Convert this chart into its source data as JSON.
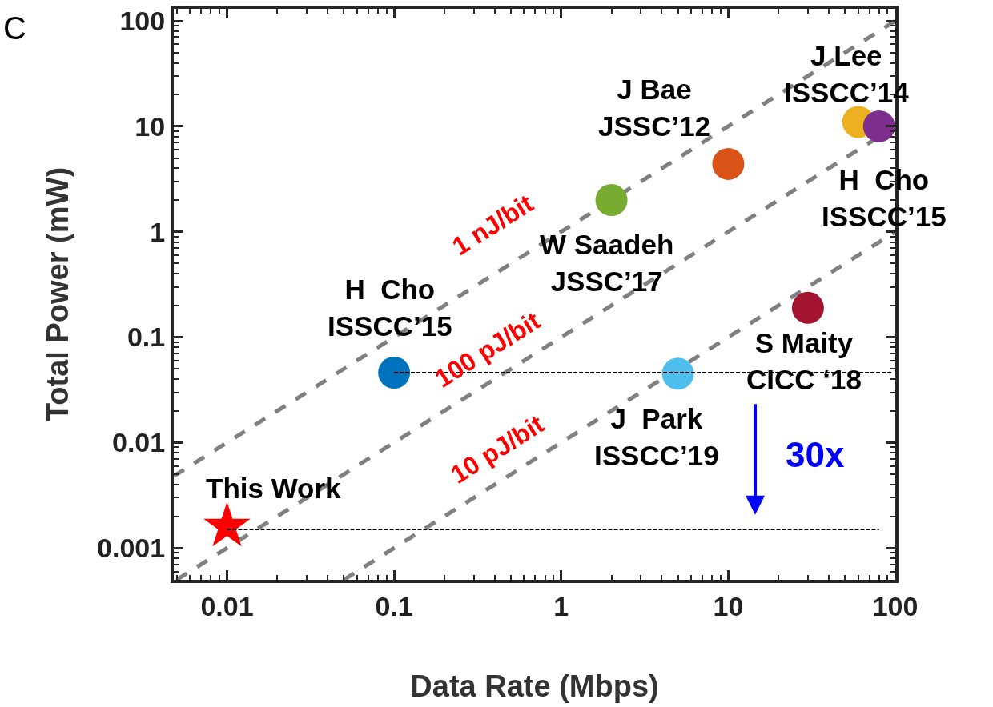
{
  "chart_data": {
    "type": "scatter",
    "xlabel": "Data Rate (Mbps)",
    "ylabel": "Total Power (mW)",
    "log": "xy",
    "marker": "circle",
    "xlim": [
      0.0048,
      100
    ],
    "ylim": [
      0.0005,
      130
    ],
    "xticks": [
      {
        "value": 0.005,
        "label": null
      },
      {
        "value": 0.006,
        "label": null
      },
      {
        "value": 0.007,
        "label": null
      },
      {
        "value": 0.008,
        "label": null
      },
      {
        "value": 0.009,
        "label": null
      },
      0.01,
      {
        "value": 0.02,
        "label": null
      },
      {
        "value": 0.03,
        "label": null
      },
      {
        "value": 0.04,
        "label": null
      },
      {
        "value": 0.05,
        "label": null
      },
      {
        "value": 0.06,
        "label": null
      },
      {
        "value": 0.07,
        "label": null
      },
      {
        "value": 0.08,
        "label": null
      },
      {
        "value": 0.09,
        "label": null
      },
      0.1,
      {
        "value": 0.2,
        "label": null
      },
      {
        "value": 0.3,
        "label": null
      },
      {
        "value": 0.4,
        "label": null
      },
      {
        "value": 0.5,
        "label": null
      },
      {
        "value": 0.6,
        "label": null
      },
      {
        "value": 0.7,
        "label": null
      },
      {
        "value": 0.8,
        "label": null
      },
      {
        "value": 0.9,
        "label": null
      },
      1,
      {
        "value": 2,
        "label": null
      },
      {
        "value": 3,
        "label": null
      },
      {
        "value": 4,
        "label": null
      },
      {
        "value": 5,
        "label": null
      },
      {
        "value": 6,
        "label": null
      },
      {
        "value": 7,
        "label": null
      },
      {
        "value": 8,
        "label": null
      },
      {
        "value": 9,
        "label": null
      },
      10,
      {
        "value": 20,
        "label": null
      },
      {
        "value": 30,
        "label": null
      },
      {
        "value": 40,
        "label": null
      },
      {
        "value": 50,
        "label": null
      },
      {
        "value": 60,
        "label": null
      },
      {
        "value": 70,
        "label": null
      },
      {
        "value": 80,
        "label": null
      },
      {
        "value": 90,
        "label": null
      },
      100
    ],
    "yticks": [
      {
        "value": 0.0006,
        "label": null
      },
      {
        "value": 0.0007,
        "label": null
      },
      {
        "value": 0.0008,
        "label": null
      },
      {
        "value": 0.0009,
        "label": null
      },
      0.001,
      {
        "value": 0.002,
        "label": null
      },
      {
        "value": 0.003,
        "label": null
      },
      {
        "value": 0.004,
        "label": null
      },
      {
        "value": 0.005,
        "label": null
      },
      {
        "value": 0.006,
        "label": null
      },
      {
        "value": 0.007,
        "label": null
      },
      {
        "value": 0.008,
        "label": null
      },
      {
        "value": 0.009,
        "label": null
      },
      0.01,
      {
        "value": 0.02,
        "label": null
      },
      {
        "value": 0.03,
        "label": null
      },
      {
        "value": 0.04,
        "label": null
      },
      {
        "value": 0.05,
        "label": null
      },
      {
        "value": 0.06,
        "label": null
      },
      {
        "value": 0.07,
        "label": null
      },
      {
        "value": 0.08,
        "label": null
      },
      {
        "value": 0.09,
        "label": null
      },
      0.1,
      {
        "value": 0.2,
        "label": null
      },
      {
        "value": 0.3,
        "label": null
      },
      {
        "value": 0.4,
        "label": null
      },
      {
        "value": 0.5,
        "label": null
      },
      {
        "value": 0.6,
        "label": null
      },
      {
        "value": 0.7,
        "label": null
      },
      {
        "value": 0.8,
        "label": null
      },
      {
        "value": 0.9,
        "label": null
      },
      1,
      {
        "value": 2,
        "label": null
      },
      {
        "value": 3,
        "label": null
      },
      {
        "value": 4,
        "label": null
      },
      {
        "value": 5,
        "label": null
      },
      {
        "value": 6,
        "label": null
      },
      {
        "value": 7,
        "label": null
      },
      {
        "value": 8,
        "label": null
      },
      {
        "value": 9,
        "label": null
      },
      10,
      {
        "value": 20,
        "label": null
      },
      {
        "value": 30,
        "label": null
      },
      {
        "value": 40,
        "label": null
      },
      {
        "value": 50,
        "label": null
      },
      {
        "value": 60,
        "label": null
      },
      {
        "value": 70,
        "label": null
      },
      {
        "value": 80,
        "label": null
      },
      {
        "value": 90,
        "label": null
      },
      100
    ],
    "series": [
      {
        "type": "line",
        "color": "#808080",
        "line_style": "dashed",
        "marker": "none",
        "x": [
          0.0048,
          100
        ],
        "values": [
          0.0048,
          100
        ]
      },
      {
        "type": "line",
        "color": "#808080",
        "line_style": "dashed",
        "marker": "none",
        "x": [
          0.005,
          100
        ],
        "values": [
          0.0005,
          10
        ]
      },
      {
        "type": "line",
        "color": "#808080",
        "line_style": "dashed",
        "marker": "none",
        "x": [
          0.05,
          100
        ],
        "values": [
          0.0005,
          1
        ]
      },
      {
        "name": "H  Cho\nISSCC’15",
        "color": "#0072bd",
        "x": [
          0.1
        ],
        "values": [
          0.046
        ]
      },
      {
        "name": "J  Park\nISSCC’19",
        "color": "#4dbeee",
        "x": [
          5
        ],
        "values": [
          0.045
        ]
      },
      {
        "name": "W Saadeh\nJSSC’17",
        "color": "#77ac30",
        "x": [
          2
        ],
        "values": [
          2.0
        ]
      },
      {
        "name": "J Bae\nJSSC’12",
        "color": "#d95319",
        "x": [
          10
        ],
        "values": [
          4.4
        ]
      },
      {
        "name": "J Lee\nISSCC’14",
        "color": "#edb120",
        "x": [
          60
        ],
        "values": [
          11
        ]
      },
      {
        "name": "H  Cho\nISSCC’15",
        "color": "#7e2f8e",
        "x": [
          80
        ],
        "values": [
          10
        ]
      },
      {
        "name": "S Maity\nCICC ‘18",
        "color": "#a2142f",
        "x": [
          30
        ],
        "values": [
          0.19
        ]
      },
      {
        "name": "This Work",
        "color": "#ff0000",
        "marker": "star",
        "x": [
          0.01
        ],
        "values": [
          0.0016
        ]
      },
      {
        "type": "line",
        "color": "#000000",
        "line_style": "dotted",
        "marker": "none",
        "x": [
          0.1,
          95
        ],
        "values": [
          0.046,
          0.046
        ]
      },
      {
        "type": "line",
        "color": "#000000",
        "line_style": "dotted",
        "marker": "none",
        "x": [
          0.01,
          80
        ],
        "values": [
          0.0015,
          0.0015
        ]
      }
    ],
    "annotations": [
      "C",
      "30x",
      "1 nJ/bit",
      "100 pJ/bit",
      "10 pJ/bit"
    ]
  }
}
